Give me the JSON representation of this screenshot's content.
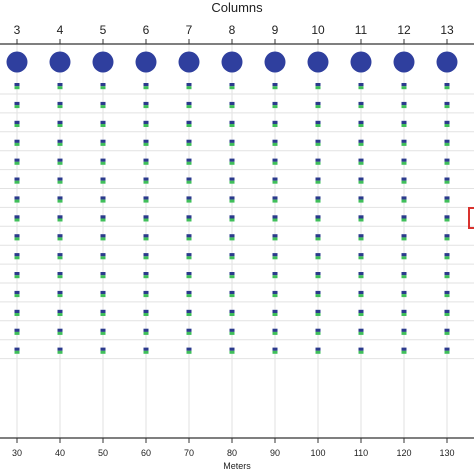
{
  "top_axis": {
    "title": "Columns",
    "labels": [
      "3",
      "4",
      "5",
      "6",
      "7",
      "8",
      "9",
      "10",
      "11",
      "12",
      "13"
    ]
  },
  "bottom_axis": {
    "title": "Meters",
    "labels": [
      "30",
      "40",
      "50",
      "60",
      "70",
      "80",
      "90",
      "100",
      "110",
      "120",
      "130"
    ]
  },
  "grid": {
    "columns": 11,
    "rows": 15
  },
  "colors": {
    "circle": "#2f3f9e",
    "marker_blue": "#2b3a8c",
    "marker_green": "#3fbf5a",
    "grid_line": "#e2e2e2",
    "axis_line": "#333333",
    "edge_mark": "#d9322e"
  }
}
